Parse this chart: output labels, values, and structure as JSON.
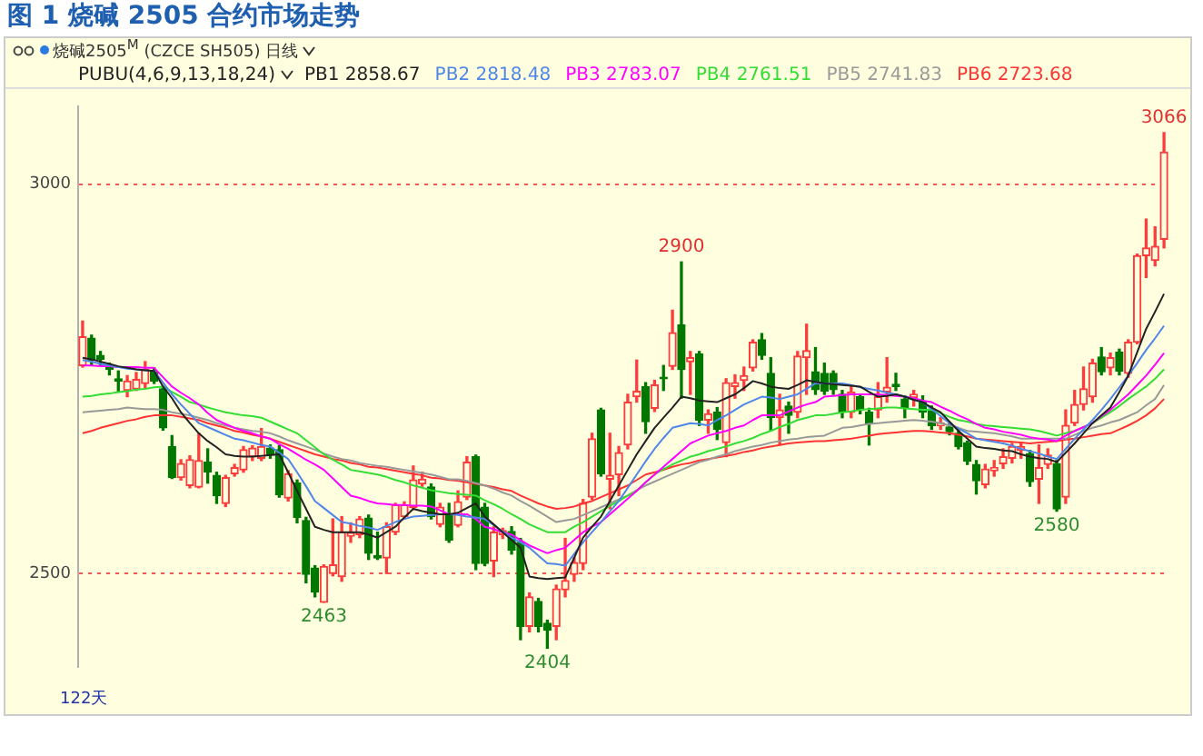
{
  "chart_data": {
    "type": "candlestick",
    "title": "图 1 烧碱 2505 合约市场走势",
    "subtitle": "烧碱2505$^{M}$ (CZCE SH505) 日线",
    "legend_title": "PUBU(4,6,9,13,18,24)",
    "legend": "top",
    "grid": "y",
    "tick_labels": "y",
    "marker": "none",
    "ylim": [
      2380,
      3100
    ],
    "yticks": [
      2500,
      3000
    ],
    "categories": [
      null,
      null,
      null,
      null,
      null,
      null,
      null,
      null,
      null,
      null,
      null,
      null,
      null,
      null,
      null,
      null,
      null,
      null,
      null,
      null,
      null,
      null,
      null,
      null,
      null,
      null,
      null,
      null,
      null,
      null,
      null,
      null,
      null,
      null,
      null,
      null,
      null,
      null,
      null,
      null,
      null,
      null,
      null,
      null,
      null,
      null,
      null,
      null,
      null,
      null,
      null,
      null,
      null,
      null,
      null,
      null,
      null,
      null,
      null,
      null,
      null,
      null,
      null,
      null,
      null,
      null,
      null,
      null,
      null,
      null,
      null,
      null,
      null,
      null,
      null,
      null,
      null,
      null,
      null,
      null,
      null,
      null,
      null,
      null,
      null,
      null,
      null,
      null,
      null,
      null,
      null,
      null,
      null,
      null,
      null,
      null,
      null,
      null,
      null,
      null,
      null,
      null,
      null,
      null,
      null,
      null,
      null,
      null,
      null,
      null,
      null,
      null,
      null,
      null,
      null,
      null,
      null,
      null,
      null,
      null,
      null,
      null
    ],
    "ohlc": [
      [
        2767,
        2824,
        2765,
        2804
      ],
      [
        2802,
        2806,
        2768,
        2774
      ],
      [
        2780,
        2785,
        2768,
        2775
      ],
      [
        2766,
        2770,
        2755,
        2762
      ],
      [
        2750,
        2760,
        2733,
        2747
      ],
      [
        2735,
        2754,
        2727,
        2747
      ],
      [
        2737,
        2758,
        2735,
        2749
      ],
      [
        2744,
        2772,
        2738,
        2762
      ],
      [
        2759,
        2764,
        2744,
        2747
      ],
      [
        2737,
        2740,
        2684,
        2687
      ],
      [
        2663,
        2677,
        2622,
        2623
      ],
      [
        2623,
        2646,
        2620,
        2641
      ],
      [
        2613,
        2651,
        2610,
        2646
      ],
      [
        2611,
        2680,
        2610,
        2645
      ],
      [
        2643,
        2660,
        2616,
        2630
      ],
      [
        2626,
        2630,
        2590,
        2600
      ],
      [
        2590,
        2626,
        2586,
        2623
      ],
      [
        2628,
        2640,
        2625,
        2636
      ],
      [
        2633,
        2663,
        2630,
        2659
      ],
      [
        2650,
        2664,
        2645,
        2661
      ],
      [
        2648,
        2686,
        2645,
        2663
      ],
      [
        2661,
        2665,
        2648,
        2652
      ],
      [
        2659,
        2664,
        2598,
        2601
      ],
      [
        2597,
        2632,
        2593,
        2628
      ],
      [
        2616,
        2620,
        2565,
        2572
      ],
      [
        2568,
        2572,
        2488,
        2499
      ],
      [
        2507,
        2510,
        2470,
        2476
      ],
      [
        2463,
        2511,
        2463,
        2509
      ],
      [
        2500,
        2570,
        2497,
        2511
      ],
      [
        2496,
        2573,
        2490,
        2553
      ],
      [
        2548,
        2565,
        2540,
        2552
      ],
      [
        2550,
        2573,
        2546,
        2570
      ],
      [
        2571,
        2575,
        2518,
        2526
      ],
      [
        2523,
        2553,
        2518,
        2520
      ],
      [
        2520,
        2565,
        2500,
        2560
      ],
      [
        2553,
        2590,
        2550,
        2588
      ],
      [
        2573,
        2592,
        2570,
        2588
      ],
      [
        2585,
        2638,
        2582,
        2620
      ],
      [
        2615,
        2630,
        2612,
        2621
      ],
      [
        2611,
        2615,
        2570,
        2573
      ],
      [
        2563,
        2590,
        2560,
        2585
      ],
      [
        2576,
        2590,
        2540,
        2543
      ],
      [
        2562,
        2606,
        2560,
        2592
      ],
      [
        2598,
        2650,
        2595,
        2643
      ],
      [
        2650,
        2652,
        2505,
        2513
      ],
      [
        2585,
        2590,
        2510,
        2513
      ],
      [
        2516,
        2560,
        2496,
        2553
      ],
      [
        2550,
        2558,
        2545,
        2555
      ],
      [
        2554,
        2560,
        2525,
        2530
      ],
      [
        2540,
        2545,
        2415,
        2432
      ],
      [
        2432,
        2475,
        2425,
        2470
      ],
      [
        2464,
        2468,
        2425,
        2432
      ],
      [
        2436,
        2440,
        2404,
        2427
      ],
      [
        2432,
        2485,
        2415,
        2480
      ],
      [
        2479,
        2545,
        2470,
        2491
      ],
      [
        2499,
        2520,
        2490,
        2514
      ],
      [
        2513,
        2595,
        2505,
        2590
      ],
      [
        2598,
        2680,
        2595,
        2673
      ],
      [
        2710,
        2712,
        2625,
        2628
      ],
      [
        2621,
        2680,
        2583,
        2626
      ],
      [
        2627,
        2663,
        2600,
        2655
      ],
      [
        2665,
        2730,
        2660,
        2720
      ],
      [
        2727,
        2774,
        2720,
        2734
      ],
      [
        2740,
        2745,
        2680,
        2695
      ],
      [
        2712,
        2748,
        2708,
        2742
      ],
      [
        2752,
        2767,
        2735,
        2750
      ],
      [
        2766,
        2838,
        2762,
        2809
      ],
      [
        2819,
        2900,
        2725,
        2762
      ],
      [
        2772,
        2785,
        2730,
        2777
      ],
      [
        2782,
        2785,
        2690,
        2697
      ],
      [
        2697,
        2710,
        2680,
        2705
      ],
      [
        2707,
        2713,
        2672,
        2685
      ],
      [
        2668,
        2750,
        2650,
        2745
      ],
      [
        2740,
        2755,
        2725,
        2745
      ],
      [
        2748,
        2765,
        2735,
        2754
      ],
      [
        2764,
        2800,
        2760,
        2797
      ],
      [
        2800,
        2808,
        2775,
        2780
      ],
      [
        2757,
        2777,
        2683,
        2700
      ],
      [
        2700,
        2730,
        2665,
        2710
      ],
      [
        2715,
        2720,
        2680,
        2703
      ],
      [
        2707,
        2785,
        2700,
        2779
      ],
      [
        2777,
        2820,
        2730,
        2786
      ],
      [
        2759,
        2790,
        2730,
        2736
      ],
      [
        2757,
        2770,
        2730,
        2734
      ],
      [
        2757,
        2760,
        2730,
        2736
      ],
      [
        2730,
        2735,
        2700,
        2707
      ],
      [
        2707,
        2740,
        2700,
        2733
      ],
      [
        2727,
        2730,
        2705,
        2710
      ],
      [
        2707,
        2712,
        2665,
        2692
      ],
      [
        2710,
        2745,
        2700,
        2727
      ],
      [
        2733,
        2777,
        2720,
        2739
      ],
      [
        2743,
        2757,
        2735,
        2740
      ],
      [
        2724,
        2728,
        2700,
        2713
      ],
      [
        2726,
        2735,
        2715,
        2730
      ],
      [
        2720,
        2728,
        2700,
        2707
      ],
      [
        2711,
        2715,
        2685,
        2690
      ],
      [
        2690,
        2700,
        2685,
        2693
      ],
      [
        2688,
        2692,
        2678,
        2682
      ],
      [
        2680,
        2685,
        2660,
        2663
      ],
      [
        2668,
        2670,
        2640,
        2644
      ],
      [
        2640,
        2645,
        2602,
        2619
      ],
      [
        2614,
        2640,
        2610,
        2634
      ],
      [
        2632,
        2645,
        2625,
        2636
      ],
      [
        2641,
        2660,
        2635,
        2650
      ],
      [
        2648,
        2667,
        2642,
        2663
      ],
      [
        2658,
        2668,
        2648,
        2663
      ],
      [
        2654,
        2658,
        2612,
        2618
      ],
      [
        2621,
        2665,
        2590,
        2636
      ],
      [
        2640,
        2660,
        2635,
        2652
      ],
      [
        2641,
        2645,
        2580,
        2583
      ],
      [
        2598,
        2710,
        2590,
        2690
      ],
      [
        2693,
        2735,
        2690,
        2717
      ],
      [
        2717,
        2765,
        2710,
        2737
      ],
      [
        2727,
        2775,
        2720,
        2770
      ],
      [
        2778,
        2790,
        2755,
        2759
      ],
      [
        2764,
        2783,
        2755,
        2777
      ],
      [
        2784,
        2788,
        2755,
        2760
      ],
      [
        2757,
        2800,
        2752,
        2797
      ],
      [
        2797,
        2910,
        2795,
        2908
      ],
      [
        2908,
        2955,
        2880,
        2918
      ],
      [
        2902,
        2945,
        2895,
        2920
      ],
      [
        2929,
        3066,
        2918,
        3041
      ]
    ],
    "colors": [
      "#ff3c3c",
      "#007800",
      "#007800",
      "#007800",
      "#007800",
      "#ff3c3c",
      "#ff3c3c",
      "#ff3c3c",
      "#007800",
      "#007800",
      "#007800",
      "#ff3c3c",
      "#ff3c3c",
      "#ff3c3c",
      "#007800",
      "#007800",
      "#ff3c3c",
      "#ff3c3c",
      "#ff3c3c",
      "#ff3c3c",
      "#ff3c3c",
      "#007800",
      "#007800",
      "#ff3c3c",
      "#007800",
      "#007800",
      "#007800",
      "#ff3c3c",
      "#ff3c3c",
      "#ff3c3c",
      "#ff3c3c",
      "#ff3c3c",
      "#007800",
      "#007800",
      "#ff3c3c",
      "#ff3c3c",
      "#ff3c3c",
      "#ff3c3c",
      "#ff3c3c",
      "#007800",
      "#ff3c3c",
      "#007800",
      "#ff3c3c",
      "#ff3c3c",
      "#007800",
      "#007800",
      "#ff3c3c",
      "#ff3c3c",
      "#007800",
      "#007800",
      "#ff3c3c",
      "#007800",
      "#007800",
      "#ff3c3c",
      "#ff3c3c",
      "#ff3c3c",
      "#ff3c3c",
      "#ff3c3c",
      "#007800",
      "#ff3c3c",
      "#ff3c3c",
      "#ff3c3c",
      "#ff3c3c",
      "#007800",
      "#ff3c3c",
      "#007800",
      "#ff3c3c",
      "#007800",
      "#ff3c3c",
      "#007800",
      "#ff3c3c",
      "#007800",
      "#ff3c3c",
      "#ff3c3c",
      "#ff3c3c",
      "#ff3c3c",
      "#007800",
      "#007800",
      "#ff3c3c",
      "#007800",
      "#ff3c3c",
      "#ff3c3c",
      "#007800",
      "#007800",
      "#007800",
      "#007800",
      "#ff3c3c",
      "#007800",
      "#007800",
      "#ff3c3c",
      "#ff3c3c",
      "#007800",
      "#007800",
      "#ff3c3c",
      "#007800",
      "#007800",
      "#ff3c3c",
      "#007800",
      "#007800",
      "#007800",
      "#007800",
      "#ff3c3c",
      "#ff3c3c",
      "#ff3c3c",
      "#ff3c3c",
      "#ff3c3c",
      "#007800",
      "#ff3c3c",
      "#ff3c3c",
      "#007800",
      "#ff3c3c",
      "#ff3c3c",
      "#ff3c3c",
      "#ff3c3c",
      "#007800",
      "#ff3c3c",
      "#007800",
      "#ff3c3c",
      "#ff3c3c",
      "#ff3c3c",
      "#ff3c3c",
      "#ff3c3c"
    ],
    "series": [
      {
        "type": "line",
        "name": "PB1 2858.67",
        "color": "#222222",
        "values": [
          2777,
          2775,
          2772,
          2769,
          2766,
          2764,
          2762,
          2761,
          2760,
          2740,
          2725,
          2707,
          2693,
          2680,
          2670,
          2662,
          2653,
          2651,
          2650,
          2650,
          2651,
          2652,
          2653,
          2630,
          2606,
          2583,
          2560,
          2556,
          2553,
          2553,
          2553,
          2553,
          2550,
          2546,
          2553,
          2560,
          2572,
          2583,
          2580,
          2578,
          2576,
          2576,
          2578,
          2584,
          2590,
          2573,
          2563,
          2553,
          2543,
          2533,
          2496,
          2494,
          2493,
          2494,
          2495,
          2520,
          2546,
          2560,
          2573,
          2593,
          2613,
          2633,
          2653,
          2670,
          2687,
          2700,
          2713,
          2727,
          2725,
          2722,
          2721,
          2720,
          2725,
          2730,
          2738,
          2747,
          2744,
          2740,
          2738,
          2737,
          2742,
          2748,
          2746,
          2744,
          2743,
          2742,
          2741,
          2740,
          2733,
          2727,
          2728,
          2730,
          2727,
          2723,
          2720,
          2713,
          2707,
          2695,
          2683,
          2673,
          2663,
          2661,
          2660,
          2658,
          2657,
          2653,
          2650,
          2648,
          2647,
          2643,
          2655,
          2667,
          2680,
          2693,
          2703,
          2713,
          2733,
          2754,
          2784,
          2814,
          2836,
          2859
        ]
      },
      {
        "type": "line",
        "name": "PB2 2818.48",
        "color": "#4f86e8",
        "values": [
          2774,
          2772,
          2769,
          2767,
          2765,
          2763,
          2762,
          2761,
          2760,
          2745,
          2730,
          2717,
          2705,
          2693,
          2688,
          2683,
          2678,
          2673,
          2671,
          2668,
          2665,
          2663,
          2655,
          2647,
          2630,
          2612,
          2593,
          2584,
          2575,
          2566,
          2564,
          2561,
          2559,
          2556,
          2561,
          2566,
          2570,
          2573,
          2574,
          2575,
          2576,
          2576,
          2575,
          2573,
          2572,
          2570,
          2562,
          2554,
          2546,
          2540,
          2533,
          2523,
          2513,
          2512,
          2510,
          2525,
          2540,
          2553,
          2566,
          2580,
          2593,
          2610,
          2627,
          2644,
          2660,
          2674,
          2687,
          2690,
          2693,
          2692,
          2690,
          2697,
          2703,
          2710,
          2717,
          2722,
          2727,
          2726,
          2724,
          2727,
          2730,
          2737,
          2744,
          2744,
          2744,
          2744,
          2742,
          2739,
          2737,
          2735,
          2732,
          2730,
          2727,
          2723,
          2720,
          2711,
          2702,
          2693,
          2686,
          2680,
          2673,
          2671,
          2669,
          2667,
          2664,
          2660,
          2657,
          2654,
          2650,
          2647,
          2660,
          2673,
          2685,
          2697,
          2710,
          2724,
          2739,
          2754,
          2770,
          2787,
          2802,
          2818
        ]
      },
      {
        "type": "line",
        "name": "PB3 2783.07",
        "color": "#ff00ff",
        "values": [
          2767,
          2767,
          2766,
          2766,
          2765,
          2765,
          2765,
          2764,
          2764,
          2752,
          2740,
          2732,
          2725,
          2717,
          2706,
          2697,
          2692,
          2687,
          2683,
          2680,
          2676,
          2673,
          2666,
          2660,
          2653,
          2646,
          2640,
          2633,
          2622,
          2611,
          2600,
          2597,
          2593,
          2590,
          2589,
          2588,
          2588,
          2587,
          2587,
          2586,
          2581,
          2576,
          2576,
          2576,
          2570,
          2560,
          2557,
          2553,
          2550,
          2543,
          2536,
          2531,
          2526,
          2530,
          2533,
          2543,
          2553,
          2560,
          2566,
          2576,
          2586,
          2596,
          2606,
          2617,
          2627,
          2637,
          2647,
          2657,
          2667,
          2672,
          2677,
          2680,
          2683,
          2687,
          2690,
          2697,
          2703,
          2703,
          2703,
          2708,
          2713,
          2717,
          2720,
          2727,
          2728,
          2729,
          2730,
          2730,
          2730,
          2730,
          2729,
          2728,
          2727,
          2725,
          2722,
          2720,
          2714,
          2709,
          2703,
          2698,
          2692,
          2687,
          2685,
          2682,
          2680,
          2678,
          2675,
          2673,
          2672,
          2670,
          2677,
          2683,
          2688,
          2693,
          2702,
          2710,
          2720,
          2730,
          2742,
          2754,
          2768,
          2783
        ]
      },
      {
        "type": "line",
        "name": "PB4 2761.51",
        "color": "#33dd33",
        "values": [
          2727,
          2728,
          2730,
          2731,
          2733,
          2734,
          2736,
          2737,
          2739,
          2740,
          2733,
          2727,
          2720,
          2717,
          2713,
          2710,
          2707,
          2705,
          2703,
          2702,
          2700,
          2695,
          2690,
          2685,
          2680,
          2671,
          2662,
          2653,
          2646,
          2640,
          2633,
          2631,
          2629,
          2627,
          2624,
          2620,
          2617,
          2613,
          2610,
          2607,
          2605,
          2603,
          2602,
          2601,
          2600,
          2594,
          2589,
          2583,
          2576,
          2570,
          2563,
          2558,
          2553,
          2553,
          2553,
          2560,
          2566,
          2573,
          2580,
          2587,
          2593,
          2600,
          2606,
          2617,
          2627,
          2634,
          2640,
          2645,
          2650,
          2653,
          2657,
          2660,
          2663,
          2667,
          2670,
          2674,
          2679,
          2683,
          2688,
          2692,
          2697,
          2700,
          2703,
          2703,
          2705,
          2707,
          2708,
          2710,
          2711,
          2712,
          2713,
          2713,
          2712,
          2711,
          2710,
          2710,
          2706,
          2701,
          2697,
          2695,
          2692,
          2690,
          2689,
          2688,
          2687,
          2686,
          2685,
          2683,
          2680,
          2677,
          2680,
          2683,
          2688,
          2693,
          2700,
          2707,
          2715,
          2724,
          2732,
          2740,
          2750,
          2762
        ]
      },
      {
        "type": "line",
        "name": "PB5 2741.83",
        "color": "#999999",
        "values": [
          2707,
          2708,
          2709,
          2710,
          2711,
          2713,
          2712,
          2711,
          2711,
          2710,
          2707,
          2705,
          2703,
          2700,
          2697,
          2693,
          2690,
          2687,
          2685,
          2683,
          2682,
          2680,
          2676,
          2671,
          2667,
          2663,
          2659,
          2654,
          2650,
          2647,
          2645,
          2642,
          2640,
          2638,
          2637,
          2635,
          2633,
          2631,
          2629,
          2627,
          2624,
          2621,
          2621,
          2619,
          2616,
          2613,
          2609,
          2604,
          2600,
          2593,
          2587,
          2580,
          2573,
          2566,
          2568,
          2570,
          2575,
          2580,
          2585,
          2590,
          2595,
          2600,
          2607,
          2613,
          2618,
          2623,
          2628,
          2633,
          2638,
          2643,
          2646,
          2650,
          2653,
          2657,
          2660,
          2663,
          2665,
          2668,
          2670,
          2672,
          2673,
          2675,
          2676,
          2677,
          2682,
          2687,
          2688,
          2690,
          2692,
          2693,
          2694,
          2695,
          2696,
          2697,
          2696,
          2695,
          2693,
          2690,
          2687,
          2683,
          2682,
          2681,
          2680,
          2678,
          2676,
          2673,
          2673,
          2673,
          2673,
          2673,
          2673,
          2678,
          2683,
          2687,
          2690,
          2694,
          2697,
          2702,
          2707,
          2716,
          2724,
          2742
        ]
      },
      {
        "type": "line",
        "name": "PB6 2723.68",
        "color": "#ff3333",
        "values": [
          2680,
          2683,
          2687,
          2690,
          2693,
          2696,
          2698,
          2701,
          2703,
          2703,
          2703,
          2701,
          2699,
          2697,
          2693,
          2690,
          2687,
          2683,
          2681,
          2678,
          2676,
          2673,
          2669,
          2665,
          2661,
          2657,
          2653,
          2650,
          2647,
          2645,
          2642,
          2640,
          2637,
          2636,
          2634,
          2632,
          2630,
          2628,
          2626,
          2623,
          2622,
          2620,
          2619,
          2617,
          2615,
          2613,
          2611,
          2608,
          2606,
          2600,
          2595,
          2590,
          2586,
          2583,
          2584,
          2586,
          2590,
          2593,
          2598,
          2603,
          2608,
          2613,
          2620,
          2627,
          2630,
          2633,
          2637,
          2640,
          2642,
          2645,
          2647,
          2649,
          2651,
          2653,
          2656,
          2658,
          2661,
          2663,
          2665,
          2667,
          2668,
          2669,
          2670,
          2670,
          2671,
          2672,
          2673,
          2675,
          2677,
          2679,
          2680,
          2681,
          2682,
          2683,
          2683,
          2682,
          2681,
          2680,
          2678,
          2676,
          2673,
          2672,
          2671,
          2670,
          2669,
          2668,
          2667,
          2668,
          2669,
          2670,
          2672,
          2673,
          2675,
          2677,
          2679,
          2680,
          2685,
          2690,
          2696,
          2703,
          2712,
          2724
        ]
      }
    ],
    "annotations": [
      {
        "text": "3066",
        "y": 3066
      },
      {
        "text": "2900",
        "y": 2900
      },
      {
        "text": "2463",
        "y": 2463
      },
      {
        "text": "2404",
        "y": 2404
      },
      {
        "text": "2580",
        "y": 2580
      },
      "122天"
    ]
  }
}
